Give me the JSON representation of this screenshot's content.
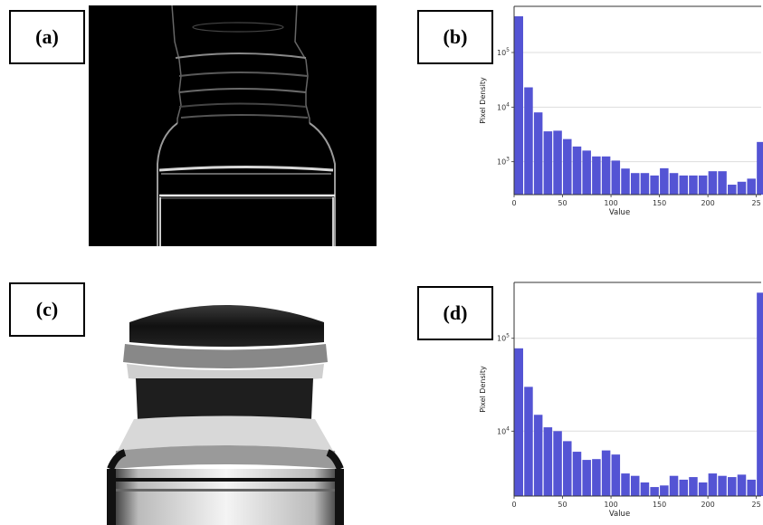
{
  "panels": {
    "a": {
      "label": "(a)"
    },
    "b": {
      "label": "(b)"
    },
    "c": {
      "label": "(c)"
    },
    "d": {
      "label": "(d)"
    }
  },
  "colors": {
    "bar": "#5454d4",
    "grid": "#dddddd"
  },
  "chart_data": [
    {
      "type": "bar",
      "xlabel": "Value",
      "ylabel": "Pixel Density",
      "yscale": "log",
      "xlim": [
        0,
        255
      ],
      "ylim": [
        250,
        700000
      ],
      "grid": true,
      "xtick_labels": [
        "0",
        "50",
        "100",
        "150",
        "200",
        "25"
      ],
      "ytick_labels": [
        "10^3",
        "10^4",
        "10^5"
      ],
      "bins": [
        0,
        10,
        20,
        30,
        40,
        50,
        60,
        70,
        80,
        90,
        100,
        110,
        120,
        130,
        140,
        150,
        160,
        170,
        180,
        190,
        200,
        210,
        220,
        230,
        240,
        250
      ],
      "values": [
        460000,
        23000,
        8000,
        3600,
        3700,
        2600,
        1900,
        1600,
        1250,
        1250,
        1050,
        750,
        620,
        620,
        560,
        760,
        620,
        560,
        560,
        560,
        670,
        670,
        380,
        430,
        490,
        2300
      ]
    },
    {
      "type": "bar",
      "xlabel": "Value",
      "ylabel": "Pixel Density",
      "yscale": "log",
      "xlim": [
        0,
        255
      ],
      "ylim": [
        2000,
        400000
      ],
      "grid": true,
      "xtick_labels": [
        "0",
        "50",
        "100",
        "150",
        "200",
        "25"
      ],
      "ytick_labels": [
        "10^4",
        "10^5"
      ],
      "bins": [
        0,
        10,
        20,
        30,
        40,
        50,
        60,
        70,
        80,
        90,
        100,
        110,
        120,
        130,
        140,
        150,
        160,
        170,
        180,
        190,
        200,
        210,
        220,
        230,
        240,
        250
      ],
      "values": [
        78000,
        30000,
        15000,
        11000,
        10000,
        7800,
        6000,
        4900,
        5000,
        6200,
        5600,
        3500,
        3300,
        2800,
        2500,
        2600,
        3300,
        3000,
        3200,
        2800,
        3500,
        3300,
        3200,
        3400,
        3000,
        310000
      ]
    }
  ]
}
